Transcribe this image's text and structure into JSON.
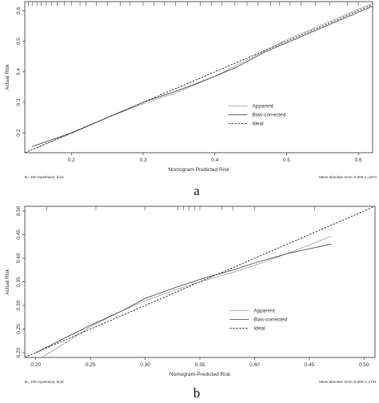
{
  "chart_data": [
    {
      "type": "line",
      "panel_label": "a",
      "xlabel": "Nomogram-Predicted Risk",
      "ylabel": "Actual Risk",
      "xlim": [
        0.135,
        0.62
      ],
      "ylim": [
        0.135,
        0.63
      ],
      "x_ticks": [
        "0.2",
        "0.3",
        "0.4",
        "0.5",
        "0.6"
      ],
      "y_ticks": [
        "0.2",
        "0.3",
        "0.4",
        "0.5",
        "0.6"
      ],
      "footnote_left": "B= 200 repetitions, boot",
      "footnote_right": "Mean absolute error=0.006 n=1874",
      "legend_position": "bottom-right",
      "grid": false,
      "rug_ticks": [
        0.14,
        0.146,
        0.152,
        0.158,
        0.165,
        0.172,
        0.18,
        0.19,
        0.2,
        0.212,
        0.22,
        0.235,
        0.25,
        0.268,
        0.282,
        0.3,
        0.315,
        0.33,
        0.345,
        0.362,
        0.38,
        0.395,
        0.41,
        0.428,
        0.445,
        0.46,
        0.478,
        0.49,
        0.505,
        0.52,
        0.54,
        0.56,
        0.585,
        0.6
      ],
      "series": [
        {
          "name": "Apparent",
          "style": "solid",
          "color": "#a8a8a8",
          "x": [
            0.15,
            0.2,
            0.25,
            0.3,
            0.35,
            0.4,
            0.45,
            0.5,
            0.55,
            0.6,
            0.62
          ],
          "y": [
            0.15,
            0.198,
            0.25,
            0.295,
            0.335,
            0.385,
            0.445,
            0.505,
            0.555,
            0.605,
            0.625
          ]
        },
        {
          "name": "Bias-corrected",
          "style": "solid",
          "color": "#555555",
          "x": [
            0.145,
            0.2,
            0.25,
            0.3,
            0.35,
            0.4,
            0.43,
            0.47,
            0.5,
            0.55,
            0.6,
            0.62
          ],
          "y": [
            0.155,
            0.2,
            0.25,
            0.3,
            0.34,
            0.385,
            0.415,
            0.465,
            0.495,
            0.545,
            0.595,
            0.615
          ]
        },
        {
          "name": "Ideal",
          "style": "dashed",
          "color": "#333333",
          "x": [
            0.135,
            0.62
          ],
          "y": [
            0.135,
            0.62
          ]
        }
      ]
    },
    {
      "type": "line",
      "panel_label": "b",
      "xlabel": "Nomogram-Predicted Risk",
      "ylabel": "Actual Risk",
      "xlim": [
        0.19,
        0.51
      ],
      "ylim": [
        0.19,
        0.51
      ],
      "x_ticks": [
        "0.20",
        "0.25",
        "0.30",
        "0.35",
        "0.40",
        "0.45",
        "0.50"
      ],
      "y_ticks": [
        "0.20",
        "0.25",
        "0.30",
        "0.35",
        "0.40",
        "0.45",
        "0.50"
      ],
      "footnote_left": "B= 200 repetitions, boot",
      "footnote_right": "Mean absolute error=0.009 n=1731",
      "legend_position": "bottom-right",
      "grid": false,
      "rug_ticks": [
        0.21,
        0.255,
        0.3,
        0.33,
        0.335,
        0.34,
        0.345,
        0.35,
        0.37,
        0.38,
        0.4,
        0.455
      ],
      "series": [
        {
          "name": "Apparent",
          "style": "solid",
          "color": "#a8a8a8",
          "x": [
            0.207,
            0.23,
            0.25,
            0.28,
            0.3,
            0.33,
            0.35,
            0.38,
            0.4,
            0.43,
            0.45,
            0.47
          ],
          "y": [
            0.192,
            0.225,
            0.255,
            0.29,
            0.31,
            0.335,
            0.35,
            0.37,
            0.385,
            0.41,
            0.428,
            0.447
          ]
        },
        {
          "name": "Bias-corrected",
          "style": "solid",
          "color": "#555555",
          "x": [
            0.2,
            0.23,
            0.25,
            0.28,
            0.3,
            0.33,
            0.35,
            0.38,
            0.4,
            0.43,
            0.45,
            0.47
          ],
          "y": [
            0.2,
            0.235,
            0.258,
            0.29,
            0.315,
            0.34,
            0.355,
            0.375,
            0.39,
            0.41,
            0.42,
            0.43
          ]
        },
        {
          "name": "Ideal",
          "style": "dashed",
          "color": "#333333",
          "x": [
            0.19,
            0.51
          ],
          "y": [
            0.19,
            0.51
          ]
        }
      ]
    }
  ]
}
